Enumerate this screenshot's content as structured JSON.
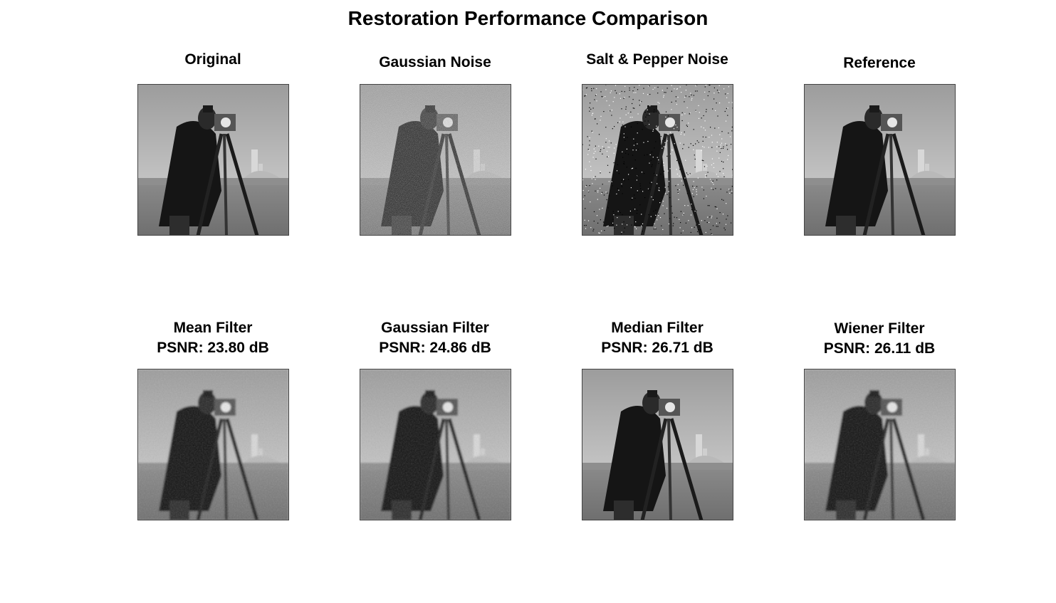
{
  "figure": {
    "title": "Restoration Performance Comparison",
    "panels": [
      {
        "title": "Original",
        "subtitle": "",
        "variant": "original",
        "image": "cameraman-photo"
      },
      {
        "title": "Gaussian Noise",
        "subtitle": "",
        "variant": "gaussian-noise",
        "image": "cameraman-photo"
      },
      {
        "title": "Salt & Pepper Noise",
        "subtitle": "",
        "variant": "salt-pepper",
        "image": "cameraman-photo"
      },
      {
        "title": "Reference",
        "subtitle": "",
        "variant": "original",
        "image": "cameraman-photo"
      },
      {
        "title": "Mean Filter",
        "subtitle": "PSNR: 23.80 dB",
        "variant": "smooth-noisy",
        "image": "cameraman-photo"
      },
      {
        "title": "Gaussian Filter",
        "subtitle": "PSNR: 24.86 dB",
        "variant": "smooth-noisy",
        "image": "cameraman-photo"
      },
      {
        "title": "Median Filter",
        "subtitle": "PSNR: 26.71 dB",
        "variant": "median",
        "image": "cameraman-photo"
      },
      {
        "title": "Wiener Filter",
        "subtitle": "PSNR: 26.11 dB",
        "variant": "smooth-noisy",
        "image": "cameraman-photo"
      }
    ]
  }
}
